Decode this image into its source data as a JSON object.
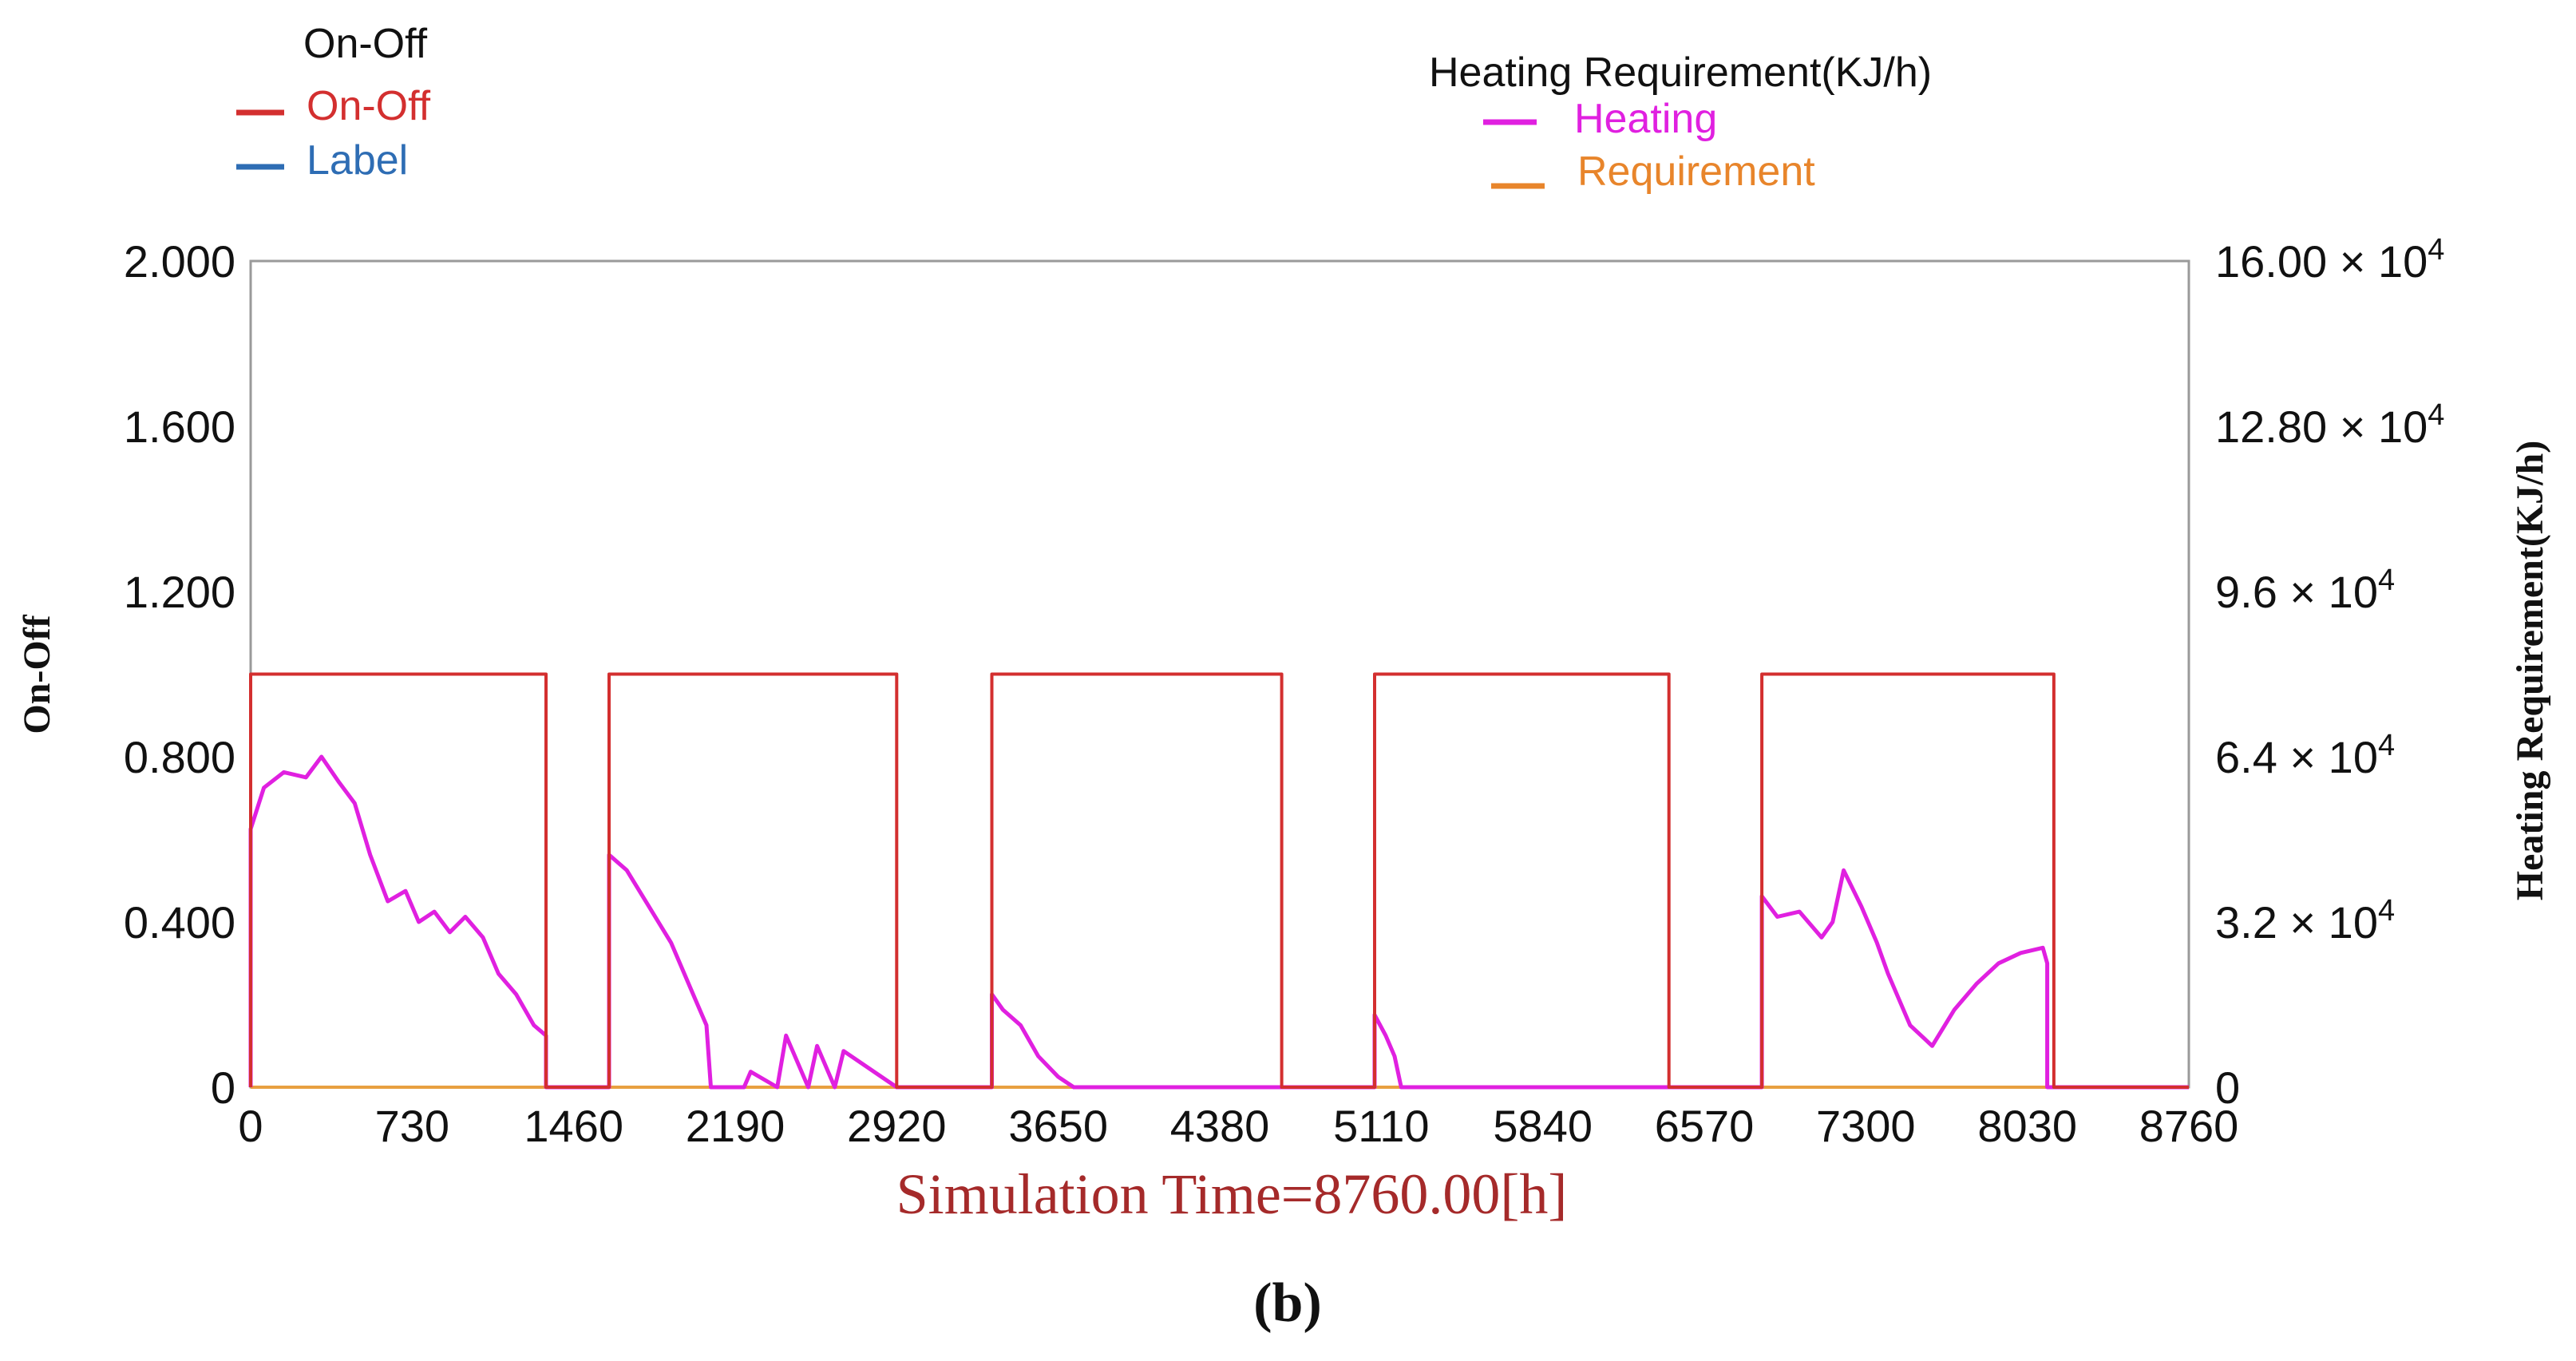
{
  "legend_left": {
    "title": "On-Off",
    "items": [
      {
        "label": "On-Off",
        "color": "#d32f2f"
      },
      {
        "label": "Label",
        "color": "#2e6db4"
      }
    ]
  },
  "legend_right": {
    "title": "Heating Requirement(KJ/h)",
    "items": [
      {
        "label": "Heating",
        "color": "#e020e0"
      },
      {
        "label": "Requirement",
        "color": "#e8852b"
      }
    ]
  },
  "caption": "(b)",
  "colors": {
    "on_off": "#d32f2f",
    "heating": "#e020e0",
    "requirement": "#e8a040",
    "axis": "#9a9a9a",
    "xlabel": "#a52a2a",
    "text": "#111111"
  },
  "chart_data": {
    "type": "line",
    "xlabel": "Simulation Time=8760.00[h]",
    "ylabel_left": "On-Off",
    "ylabel_right": "Heating Requirement(KJ/h)",
    "xlim": [
      0,
      8760
    ],
    "ylim_left": [
      0,
      2
    ],
    "ylim_right": [
      0,
      160000
    ],
    "x_ticks": [
      "0",
      "730",
      "1460",
      "2190",
      "2920",
      "3650",
      "4380",
      "5110",
      "5840",
      "6570",
      "7300",
      "8030",
      "8760"
    ],
    "y_left_ticks": [
      "0",
      "0.400",
      "0.800",
      "1.200",
      "1.600",
      "2.000"
    ],
    "y_right_ticks": [
      {
        "mantissa": "0",
        "exponent": ""
      },
      {
        "mantissa": "3.2 × 10",
        "exponent": "4"
      },
      {
        "mantissa": "6.4 × 10",
        "exponent": "4"
      },
      {
        "mantissa": "9.6 × 10",
        "exponent": "4"
      },
      {
        "mantissa": "12.80 × 10",
        "exponent": "4"
      },
      {
        "mantissa": "16.00 × 10",
        "exponent": "4"
      }
    ],
    "series": [
      {
        "name": "On-Off",
        "axis": "left",
        "x": [
          0,
          0,
          1335,
          1335,
          1620,
          1620,
          2920,
          2920,
          3350,
          3350,
          4660,
          4660,
          5080,
          5080,
          6410,
          6410,
          6830,
          6830,
          8150,
          8150,
          8760
        ],
        "values": [
          0,
          1,
          1,
          0,
          0,
          1,
          1,
          0,
          0,
          1,
          1,
          0,
          0,
          1,
          1,
          0,
          0,
          1,
          1,
          0,
          0
        ]
      },
      {
        "name": "Heating",
        "axis": "right",
        "x": [
          0,
          0,
          60,
          150,
          250,
          320,
          400,
          470,
          540,
          620,
          700,
          760,
          830,
          900,
          970,
          1050,
          1120,
          1200,
          1280,
          1335,
          1335,
          1620,
          1620,
          1700,
          1800,
          1900,
          2000,
          2060,
          2080,
          2230,
          2260,
          2380,
          2420,
          2520,
          2560,
          2640,
          2680,
          2920,
          3350,
          3350,
          3400,
          3480,
          3560,
          3650,
          3720,
          3790,
          5080,
          5080,
          5130,
          5170,
          5200,
          6830,
          6830,
          6900,
          7000,
          7100,
          7150,
          7200,
          7280,
          7350,
          7400,
          7500,
          7600,
          7700,
          7800,
          7900,
          8000,
          8100,
          8120,
          8120,
          8760
        ],
        "values": [
          0,
          50000,
          58000,
          61000,
          60000,
          64000,
          59000,
          55000,
          45000,
          36000,
          38000,
          32000,
          34000,
          30000,
          33000,
          29000,
          22000,
          18000,
          12000,
          10000,
          0,
          0,
          45000,
          42000,
          35000,
          28000,
          18000,
          12000,
          0,
          0,
          3000,
          0,
          10000,
          0,
          8000,
          0,
          7000,
          0,
          0,
          18000,
          15000,
          12000,
          6000,
          2000,
          0,
          0,
          0,
          14000,
          10000,
          6000,
          0,
          0,
          37000,
          33000,
          34000,
          29000,
          32000,
          42000,
          35000,
          28000,
          22000,
          12000,
          8000,
          15000,
          20000,
          24000,
          26000,
          27000,
          24000,
          0,
          0
        ]
      },
      {
        "name": "Requirement",
        "axis": "right",
        "x": [
          0,
          8760
        ],
        "values": [
          0,
          0
        ]
      }
    ]
  }
}
